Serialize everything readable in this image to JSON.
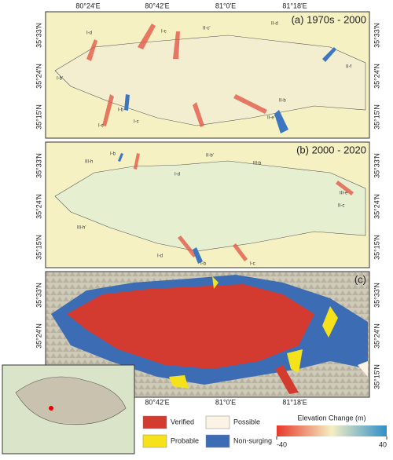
{
  "lon_labels_top": [
    "80°24'E",
    "80°42'E",
    "81°0'E",
    "81°18'E"
  ],
  "lon_labels_bottom": [
    "80°42'E",
    "81°0'E",
    "81°18'E"
  ],
  "lat_labels": [
    "35°33'N",
    "35°24'N",
    "35°15'N"
  ],
  "panels": [
    {
      "label": "(a) 1970s - 2000",
      "glaciers": [
        "I-d",
        "I-c",
        "I-c",
        "II-c'",
        "II-d",
        "II-f",
        "I-b'",
        "I-b",
        "II-b",
        "II-e'",
        "I-c"
      ]
    },
    {
      "label": "(b) 2000 - 2020",
      "glaciers": [
        "III-h",
        "I-b",
        "II-b'",
        "III-b",
        "I-d",
        "III-e",
        "II-c",
        "III-h'",
        "I-d",
        "I-b",
        "I-c"
      ]
    },
    {
      "label": "(c)"
    }
  ],
  "legend": [
    {
      "label": "Verified",
      "color": "#d43b30"
    },
    {
      "label": "Possible",
      "color": "#fbf4e4"
    },
    {
      "label": "Probable",
      "color": "#f5e21a"
    },
    {
      "label": "Non-surging",
      "color": "#3c6db4"
    }
  ],
  "colorbar": {
    "title": "Elevation Change (m)",
    "min": -40,
    "max": 40,
    "colors": [
      "#e8382a",
      "#f3efc2",
      "#2e8fc9"
    ]
  }
}
